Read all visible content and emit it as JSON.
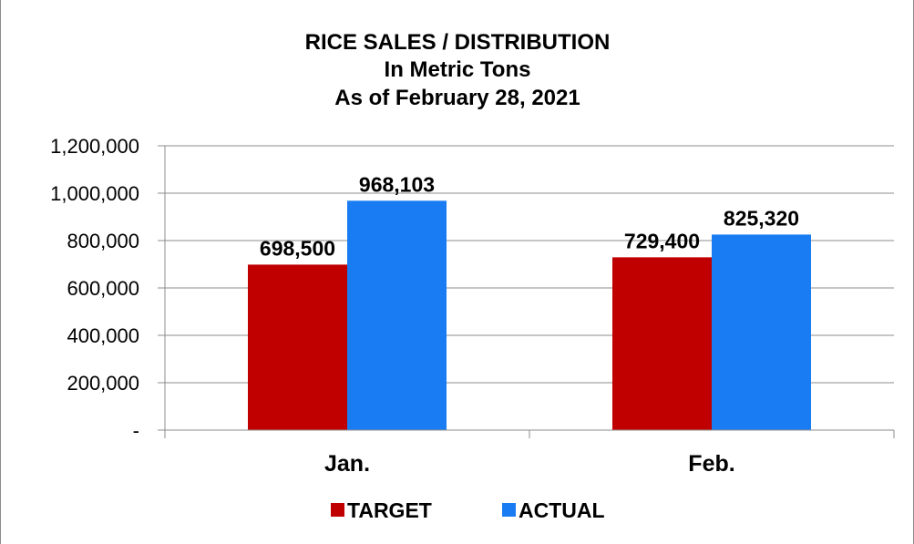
{
  "chart_data": {
    "type": "bar",
    "title": [
      "RICE SALES / DISTRIBUTION",
      "In Metric Tons",
      "As of February 28, 2021"
    ],
    "xlabel": "",
    "ylabel": "",
    "categories": [
      "Jan.",
      "Feb."
    ],
    "series": [
      {
        "name": "TARGET",
        "color": "#c00000",
        "values": [
          698500,
          729400
        ],
        "data_labels": [
          "698,500",
          "729,400"
        ]
      },
      {
        "name": "ACTUAL",
        "color": "#1a7cf2",
        "values": [
          968103,
          825320
        ],
        "data_labels": [
          "968,103",
          "825,320"
        ]
      }
    ],
    "ylim": [
      0,
      1200000
    ],
    "yticks": [
      0,
      200000,
      400000,
      600000,
      800000,
      1000000,
      1200000
    ],
    "ytick_labels": [
      "-",
      "200,000",
      "400,000",
      "600,000",
      "800,000",
      "1,000,000",
      "1,200,000"
    ],
    "grid": true,
    "legend_position": "bottom"
  }
}
